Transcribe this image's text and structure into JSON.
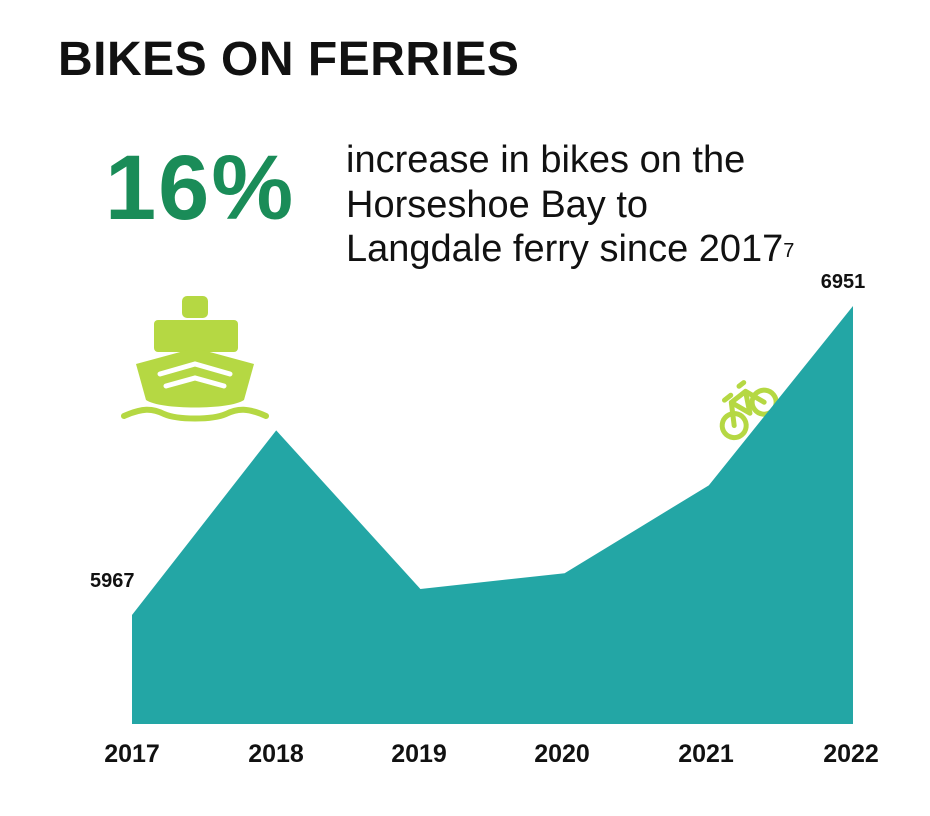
{
  "title": "BIKES ON FERRIES",
  "stat": {
    "value": "16%",
    "description": "increase in bikes on the Horseshoe Bay to Langdale ferry since 2017",
    "footnote": "7"
  },
  "icons": {
    "ferry": "ferry-icon",
    "bike": "bicycle-icon"
  },
  "colors": {
    "stat_green": "#1a8c58",
    "area_teal": "#23a6a5",
    "icon_lime": "#b5d843",
    "text": "#111111"
  },
  "chart_data": {
    "type": "area",
    "categories": [
      "2017",
      "2018",
      "2019",
      "2020",
      "2021",
      "2022"
    ],
    "values": [
      5967,
      6555,
      6050,
      6100,
      6380,
      6951
    ],
    "data_labels": [
      {
        "index": 0,
        "text": "5967"
      },
      {
        "index": 5,
        "text": "6951"
      }
    ],
    "ylim": [
      5620,
      6951
    ],
    "grid": false,
    "legend": "none"
  }
}
